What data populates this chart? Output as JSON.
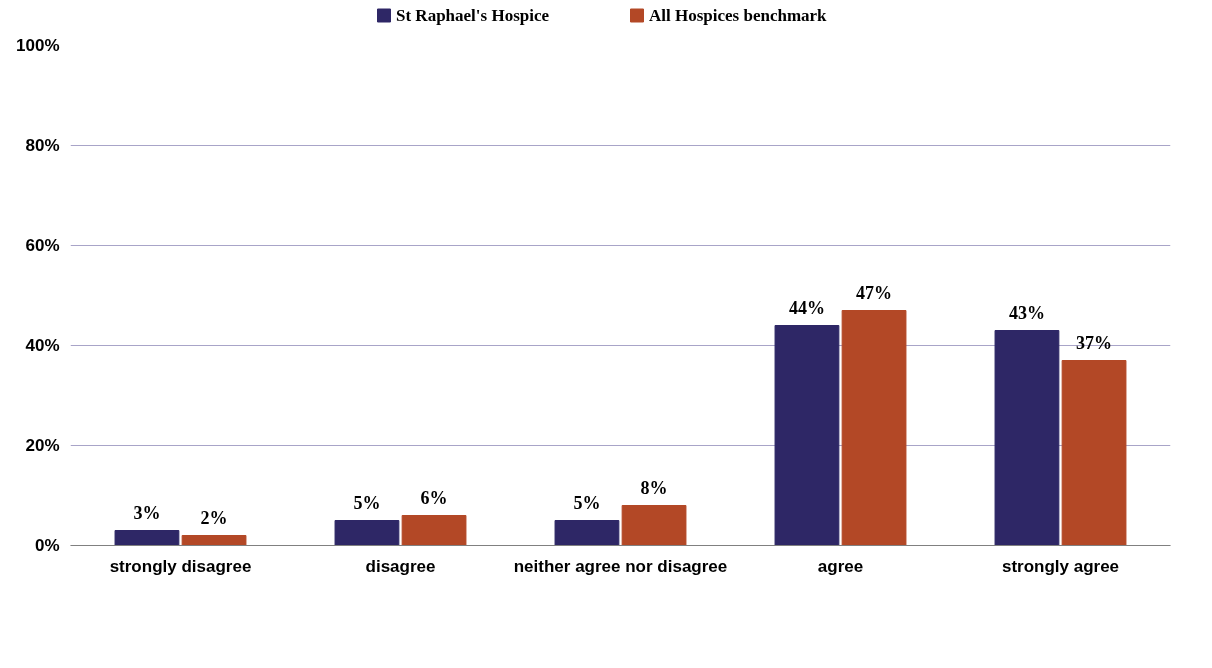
{
  "chart_data": {
    "type": "bar",
    "categories": [
      "strongly disagree",
      "disagree",
      "neither agree nor disagree",
      "agree",
      "strongly agree"
    ],
    "series": [
      {
        "name": "St Raphael's Hospice",
        "color": "#2e2766",
        "values": [
          3,
          5,
          5,
          44,
          43
        ],
        "value_labels": [
          "3%",
          "5%",
          "5%",
          "44%",
          "43%"
        ]
      },
      {
        "name": "All Hospices benchmark",
        "color": "#b34826",
        "values": [
          2,
          6,
          8,
          47,
          37
        ],
        "value_labels": [
          "2%",
          "6%",
          "8%",
          "47%",
          "37%"
        ]
      }
    ],
    "ylim": [
      0,
      100
    ],
    "yticks": [
      {
        "value": 0,
        "label": "0%"
      },
      {
        "value": 20,
        "label": "20%"
      },
      {
        "value": 40,
        "label": "40%"
      },
      {
        "value": 60,
        "label": "60%"
      },
      {
        "value": 80,
        "label": "80%"
      },
      {
        "value": 100,
        "label": "100%"
      }
    ],
    "grid": "y",
    "legend": "top"
  }
}
